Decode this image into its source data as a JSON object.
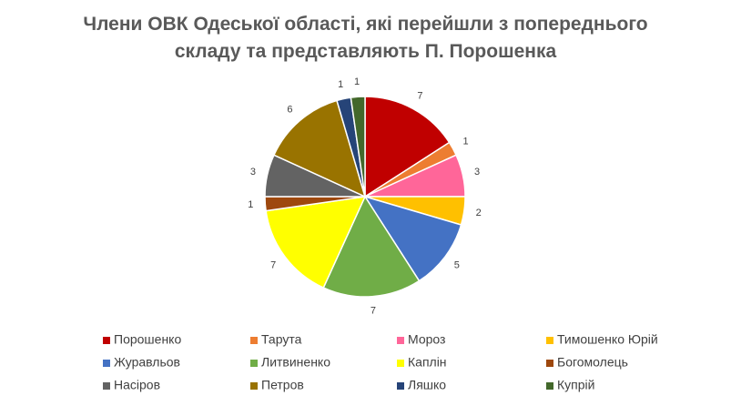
{
  "chart_data": {
    "type": "pie",
    "title": "Члени ОВК Одеської області, які перейшли з попереднього складу та представляють П. Порошенка",
    "categories": [
      "Порошенко",
      "Тарута",
      "Мороз",
      "Тимошенко Юрій",
      "Журавльов",
      "Литвиненко",
      "Каплін",
      "Богомолець",
      "Насіров",
      "Петров",
      "Ляшко",
      "Купрій"
    ],
    "values": [
      7,
      1,
      3,
      2,
      5,
      7,
      7,
      1,
      3,
      6,
      1,
      1
    ],
    "colors": [
      "#c00000",
      "#ed7d31",
      "#ff6699",
      "#ffc000",
      "#4472c4",
      "#70ad47",
      "#ffff00",
      "#9e480e",
      "#636363",
      "#997300",
      "#264478",
      "#43682b"
    ],
    "legend": "bottom"
  }
}
